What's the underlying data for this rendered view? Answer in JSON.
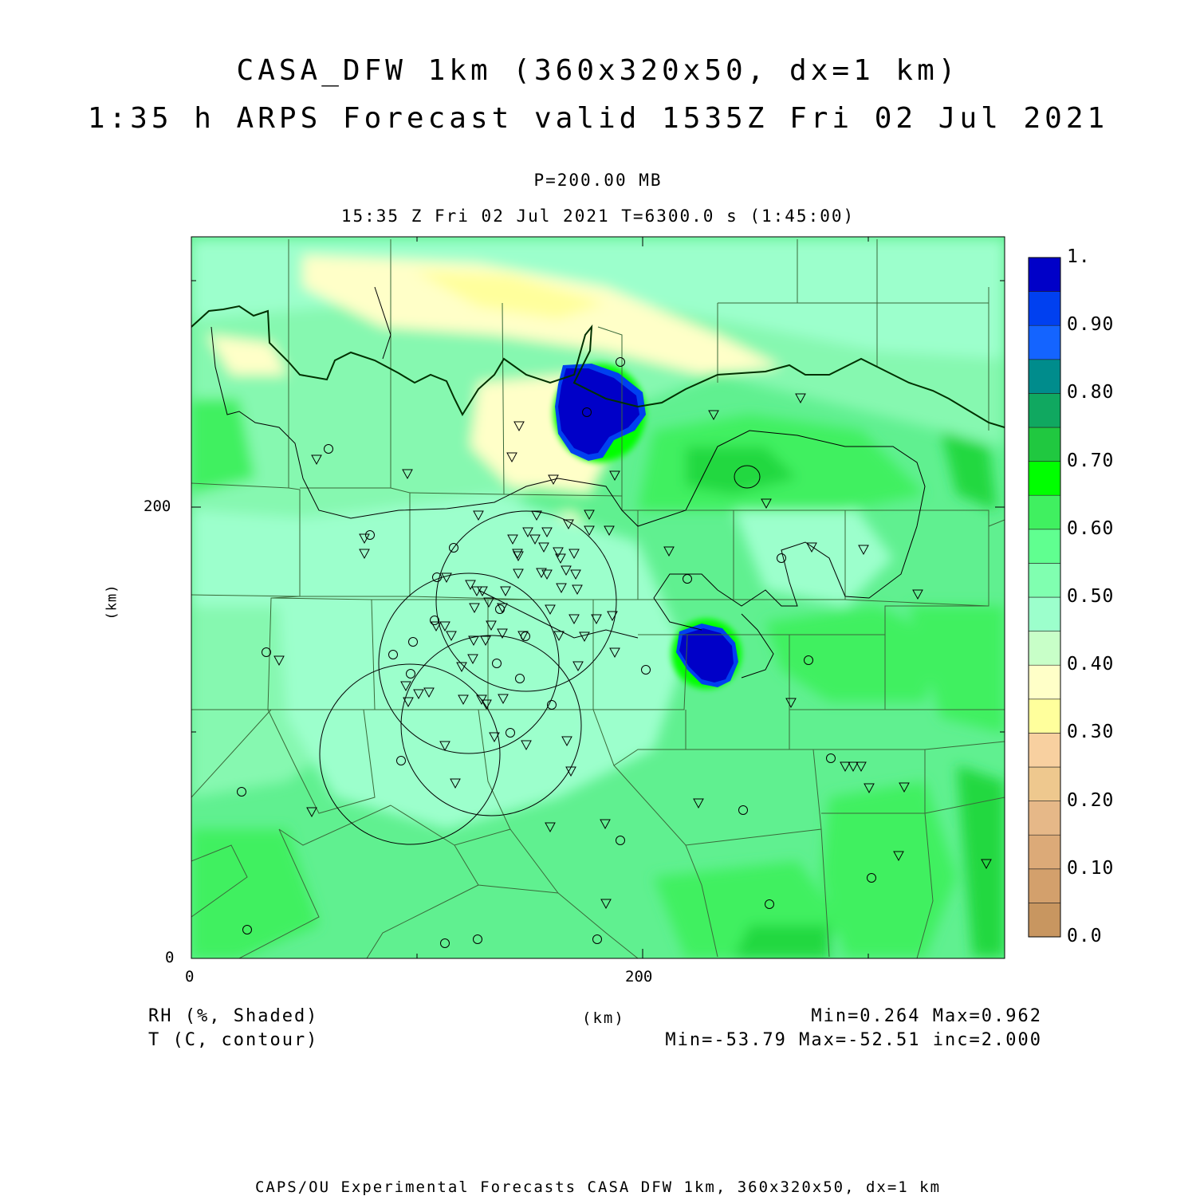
{
  "title": {
    "line1": "CASA_DFW 1km (360x320x50, dx=1 km)",
    "line2": "1:35 h ARPS Forecast valid 1535Z Fri 02 Jul 2021"
  },
  "level": "P=200.00 MB",
  "time_info": "15:35 Z Fri 02 Jul 2021    T=6300.0 s (1:45:00)",
  "axes": {
    "x_label": "(km)",
    "y_label": "(km)",
    "x_ticks": [
      "0",
      "200"
    ],
    "y_ticks": [
      "0",
      "200"
    ]
  },
  "fields": {
    "shaded": "RH (%, Shaded)",
    "contour": "T (C, contour)"
  },
  "stats": {
    "shaded": "Min=0.264 Max=0.962",
    "contour": "Min=-53.79 Max=-52.51 inc=2.000"
  },
  "colorbar": {
    "labels": [
      "1.",
      "0.90",
      "0.80",
      "0.70",
      "0.60",
      "0.50",
      "0.40",
      "0.30",
      "0.20",
      "0.10",
      "0.0"
    ],
    "colors": [
      "#c89660",
      "#d3a06c",
      "#dcaa78",
      "#e6b888",
      "#eec88e",
      "#f8d0a0",
      "#ffff9c",
      "#ffffc8",
      "#c8ffc8",
      "#9cffcc",
      "#80ffb0",
      "#60ff90",
      "#40f060",
      "#00ff00",
      "#20c840",
      "#10a860",
      "#008c8c",
      "#1464ff",
      "#0040f0",
      "#0000c8"
    ]
  },
  "footer": "CAPS/OU Experimental Forecasts  CASA DFW 1km, 360x320x50, dx=1 km"
}
